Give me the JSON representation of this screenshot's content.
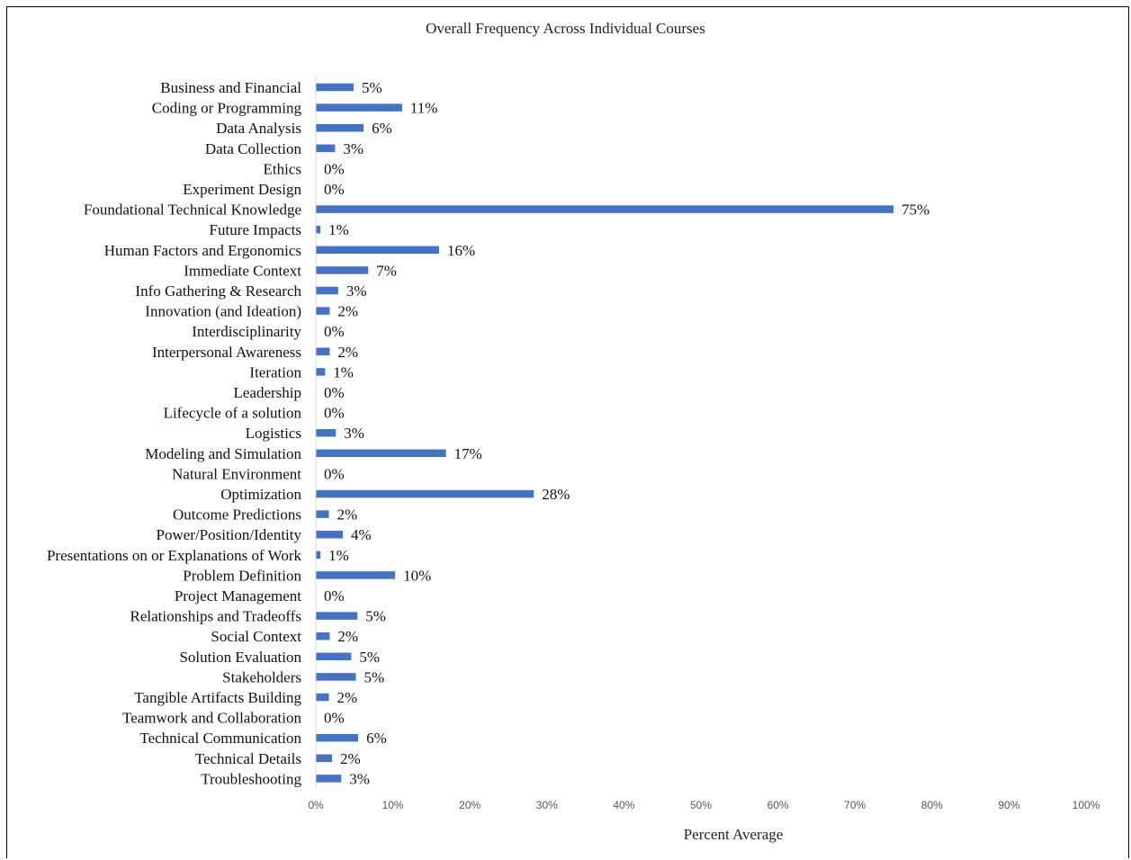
{
  "chart_data": {
    "type": "bar",
    "orientation": "horizontal",
    "title": "Overall Frequency Across Individual Courses",
    "xlabel": "Percent Average",
    "ylabel": "",
    "xlim": [
      0,
      100
    ],
    "xticks": [
      "0%",
      "10%",
      "20%",
      "30%",
      "40%",
      "50%",
      "60%",
      "70%",
      "80%",
      "90%",
      "100%"
    ],
    "grid": false,
    "bar_color": "#4472C4",
    "categories": [
      "Business and Financial",
      "Coding or Programming",
      "Data Analysis",
      "Data Collection",
      "Ethics",
      "Experiment Design",
      "Foundational Technical Knowledge",
      "Future Impacts",
      "Human Factors and Ergonomics",
      "Immediate Context",
      "Info Gathering & Research",
      "Innovation (and Ideation)",
      "Interdisciplinarity",
      "Interpersonal Awareness",
      "Iteration",
      "Leadership",
      "Lifecycle of a solution",
      "Logistics",
      "Modeling and Simulation",
      "Natural Environment",
      "Optimization",
      "Outcome Predictions",
      "Power/Position/Identity",
      "Presentations on or Explanations of Work",
      "Problem Definition",
      "Project Management",
      "Relationships and Tradeoffs",
      "Social Context",
      "Solution Evaluation",
      "Stakeholders",
      "Tangible Artifacts Building",
      "Teamwork and Collaboration",
      "Technical Communication",
      "Technical Details",
      "Troubleshooting"
    ],
    "values": [
      4.9,
      11.2,
      6.2,
      2.5,
      0,
      0,
      75.0,
      0.6,
      16.0,
      6.8,
      2.9,
      1.8,
      0,
      1.8,
      1.2,
      0,
      0,
      2.6,
      16.9,
      0,
      28.3,
      1.7,
      3.5,
      0.6,
      10.3,
      0,
      5.4,
      1.8,
      4.6,
      5.2,
      1.7,
      0,
      5.5,
      2.1,
      3.3
    ],
    "data_labels": [
      "5%",
      "11%",
      "6%",
      "3%",
      "0%",
      "0%",
      "75%",
      "1%",
      "16%",
      "7%",
      "3%",
      "2%",
      "0%",
      "2%",
      "1%",
      "0%",
      "0%",
      "3%",
      "17%",
      "0%",
      "28%",
      "2%",
      "4%",
      "1%",
      "10%",
      "0%",
      "5%",
      "2%",
      "5%",
      "5%",
      "2%",
      "0%",
      "6%",
      "2%",
      "3%"
    ]
  }
}
